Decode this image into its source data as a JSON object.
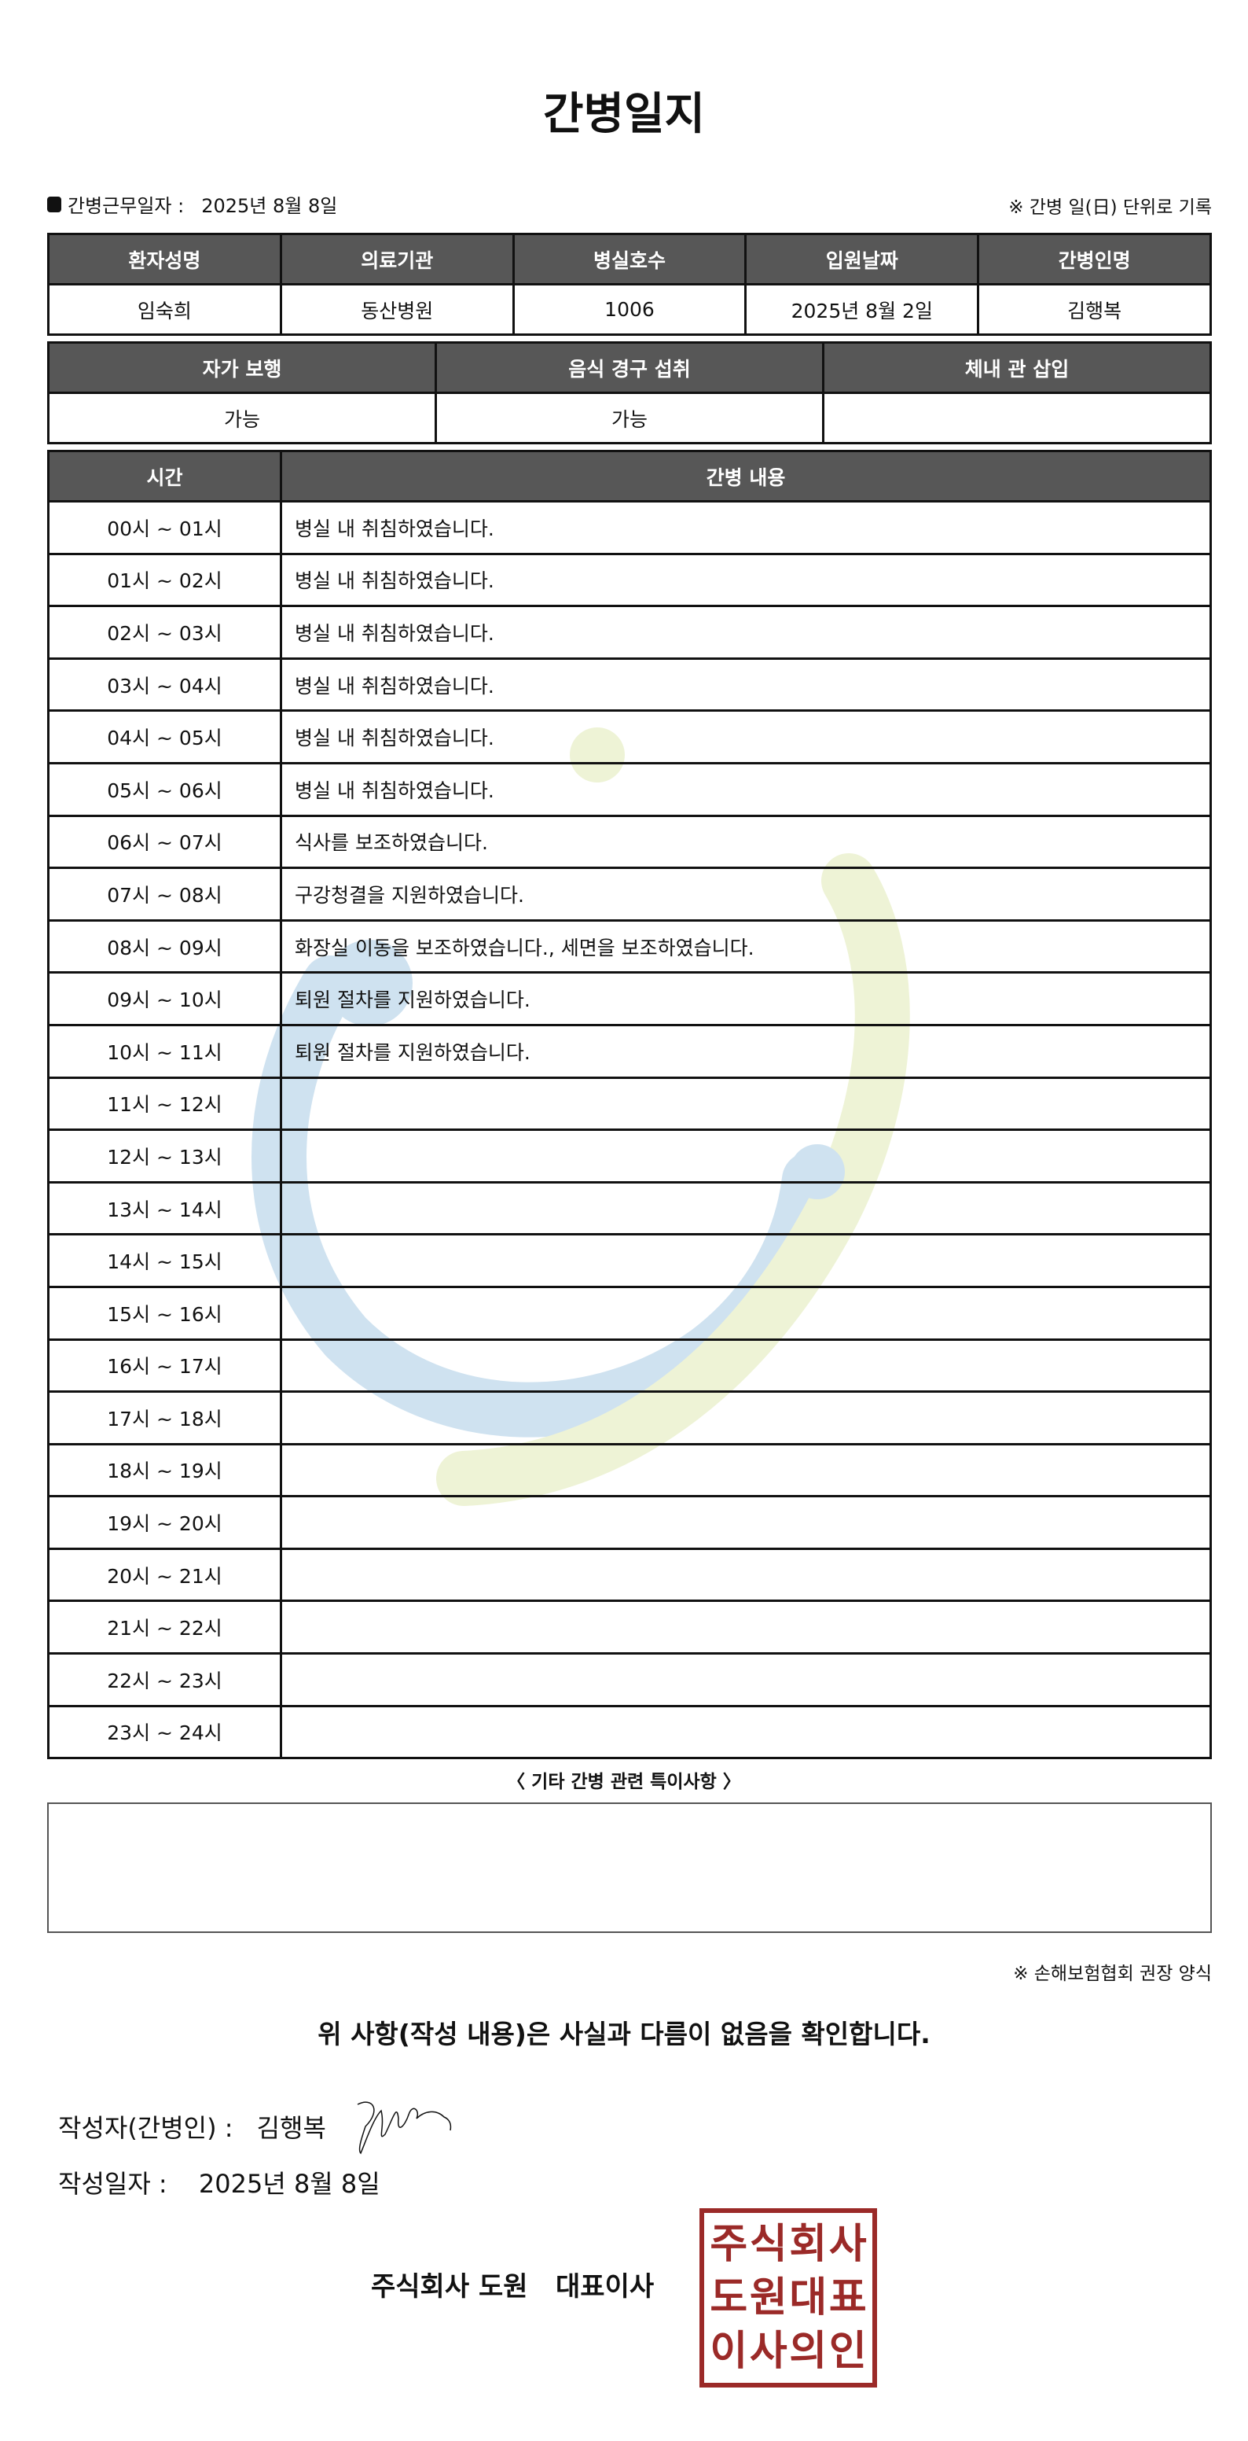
{
  "title": "간병일지",
  "work_date_label": "간병근무일자 :",
  "work_date": "2025년 8월 8일",
  "rule_note": "※ 간병 일(日) 단위로 기록",
  "patient_table": {
    "headers": [
      "환자성명",
      "의료기관",
      "병실호수",
      "입원날짜",
      "간병인명"
    ],
    "values": [
      "임숙희",
      "동산병원",
      "1006",
      "2025년 8월 2일",
      "김행복"
    ]
  },
  "status_table": {
    "headers": [
      "자가 보행",
      "음식 경구 섭취",
      "체내 관 삽입"
    ],
    "values": [
      "가능",
      "가능",
      ""
    ]
  },
  "care_table": {
    "headers": [
      "시간",
      "간병 내용"
    ],
    "rows": [
      {
        "time": "00시 ~ 01시",
        "content": "병실 내 취침하였습니다."
      },
      {
        "time": "01시 ~ 02시",
        "content": "병실 내 취침하였습니다."
      },
      {
        "time": "02시 ~ 03시",
        "content": "병실 내 취침하였습니다."
      },
      {
        "time": "03시 ~ 04시",
        "content": "병실 내 취침하였습니다."
      },
      {
        "time": "04시 ~ 05시",
        "content": "병실 내 취침하였습니다."
      },
      {
        "time": "05시 ~ 06시",
        "content": "병실 내 취침하였습니다."
      },
      {
        "time": "06시 ~ 07시",
        "content": "식사를 보조하였습니다."
      },
      {
        "time": "07시 ~ 08시",
        "content": "구강청결을 지원하였습니다."
      },
      {
        "time": "08시 ~ 09시",
        "content": "화장실 이동을 보조하였습니다., 세면을 보조하였습니다."
      },
      {
        "time": "09시 ~ 10시",
        "content": "퇴원 절차를 지원하였습니다."
      },
      {
        "time": "10시 ~ 11시",
        "content": "퇴원 절차를 지원하였습니다."
      },
      {
        "time": "11시 ~ 12시",
        "content": ""
      },
      {
        "time": "12시 ~ 13시",
        "content": ""
      },
      {
        "time": "13시 ~ 14시",
        "content": ""
      },
      {
        "time": "14시 ~ 15시",
        "content": ""
      },
      {
        "time": "15시 ~ 16시",
        "content": ""
      },
      {
        "time": "16시 ~ 17시",
        "content": ""
      },
      {
        "time": "17시 ~ 18시",
        "content": ""
      },
      {
        "time": "18시 ~ 19시",
        "content": ""
      },
      {
        "time": "19시 ~ 20시",
        "content": ""
      },
      {
        "time": "20시 ~ 21시",
        "content": ""
      },
      {
        "time": "21시 ~ 22시",
        "content": ""
      },
      {
        "time": "22시 ~ 23시",
        "content": ""
      },
      {
        "time": "23시 ~ 24시",
        "content": ""
      }
    ]
  },
  "notes_title": "〈 기타 간병 관련 특이사항 〉",
  "notes": "",
  "association_note": "※ 손해보험협회 권장 양식",
  "confirmation": "위 사항(작성 내용)은 사실과 다름이 없음을 확인합니다.",
  "writer_label": "작성자(간병인) :",
  "writer_name": "김행복",
  "write_date_label": "작성일자 :",
  "write_date": "2025년 8월 8일",
  "company": "주식회사 도원   대표이사",
  "stamp_text": "주식회사도원대표이사의인",
  "colors": {
    "header_bg": "#575757",
    "stamp": "#9b2a28",
    "watermark_blue": "#cfe2f0",
    "watermark_green": "#eef3d6"
  }
}
